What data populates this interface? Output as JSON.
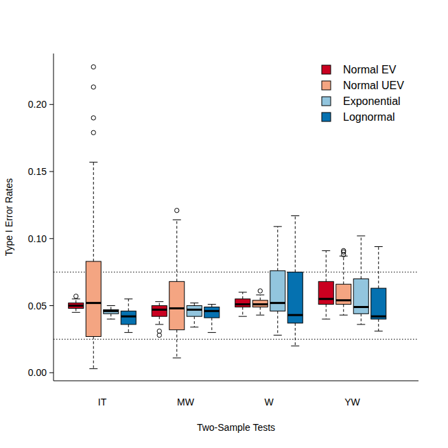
{
  "chart_data": {
    "type": "box",
    "x_label": "Two-Sample Tests",
    "y_label": "Type I Error Rates",
    "categories": [
      "IT",
      "MW",
      "W",
      "YW"
    ],
    "ylim": [
      -0.006,
      0.238
    ],
    "yticks": [
      {
        "value": 0,
        "label": "0.00"
      },
      {
        "value": 0.05,
        "label": "0.05"
      },
      {
        "value": 0.1,
        "label": "0.10"
      },
      {
        "value": 0.15,
        "label": "0.15"
      },
      {
        "value": 0.2,
        "label": "0.20"
      }
    ],
    "hlines": [
      0.025,
      0.075
    ],
    "legend": "top-right",
    "series": [
      {
        "name": "Normal EV",
        "color": "#ca0020",
        "values": [
          {
            "min": 0.045,
            "q1": 0.048,
            "median": 0.05,
            "q3": 0.052,
            "max": 0.055,
            "outliers": [
              0.057
            ]
          },
          {
            "min": 0.036,
            "q1": 0.042,
            "median": 0.047,
            "q3": 0.05,
            "max": 0.053,
            "outliers": [
              0.031,
              0.028
            ]
          },
          {
            "min": 0.042,
            "q1": 0.049,
            "median": 0.051,
            "q3": 0.055,
            "max": 0.06,
            "outliers": []
          },
          {
            "min": 0.04,
            "q1": 0.051,
            "median": 0.055,
            "q3": 0.068,
            "max": 0.091,
            "outliers": []
          }
        ]
      },
      {
        "name": "Normal UEV",
        "color": "#f4a582",
        "values": [
          {
            "min": 0.003,
            "q1": 0.027,
            "median": 0.052,
            "q3": 0.083,
            "max": 0.157,
            "outliers": [
              0.179,
              0.19,
              0.213,
              0.228
            ]
          },
          {
            "min": 0.011,
            "q1": 0.032,
            "median": 0.048,
            "q3": 0.068,
            "max": 0.114,
            "outliers": [
              0.121
            ]
          },
          {
            "min": 0.043,
            "q1": 0.049,
            "median": 0.051,
            "q3": 0.054,
            "max": 0.058,
            "outliers": [
              0.061
            ]
          },
          {
            "min": 0.043,
            "q1": 0.051,
            "median": 0.054,
            "q3": 0.066,
            "max": 0.087,
            "outliers": [
              0.088,
              0.09,
              0.091
            ]
          }
        ]
      },
      {
        "name": "Exponential",
        "color": "#92c5de",
        "values": [
          {
            "min": 0.04,
            "q1": 0.044,
            "median": 0.046,
            "q3": 0.047,
            "max": 0.05,
            "outliers": []
          },
          {
            "min": 0.034,
            "q1": 0.042,
            "median": 0.047,
            "q3": 0.05,
            "max": 0.052,
            "outliers": []
          },
          {
            "min": 0.028,
            "q1": 0.046,
            "median": 0.052,
            "q3": 0.076,
            "max": 0.109,
            "outliers": []
          },
          {
            "min": 0.036,
            "q1": 0.044,
            "median": 0.049,
            "q3": 0.07,
            "max": 0.102,
            "outliers": []
          }
        ]
      },
      {
        "name": "Lognormal",
        "color": "#0571b0",
        "values": [
          {
            "min": 0.03,
            "q1": 0.036,
            "median": 0.042,
            "q3": 0.046,
            "max": 0.055,
            "outliers": []
          },
          {
            "min": 0.03,
            "q1": 0.041,
            "median": 0.046,
            "q3": 0.049,
            "max": 0.051,
            "outliers": []
          },
          {
            "min": 0.02,
            "q1": 0.037,
            "median": 0.043,
            "q3": 0.075,
            "max": 0.117,
            "outliers": []
          },
          {
            "min": 0.031,
            "q1": 0.04,
            "median": 0.042,
            "q3": 0.063,
            "max": 0.094,
            "outliers": []
          }
        ]
      }
    ]
  }
}
